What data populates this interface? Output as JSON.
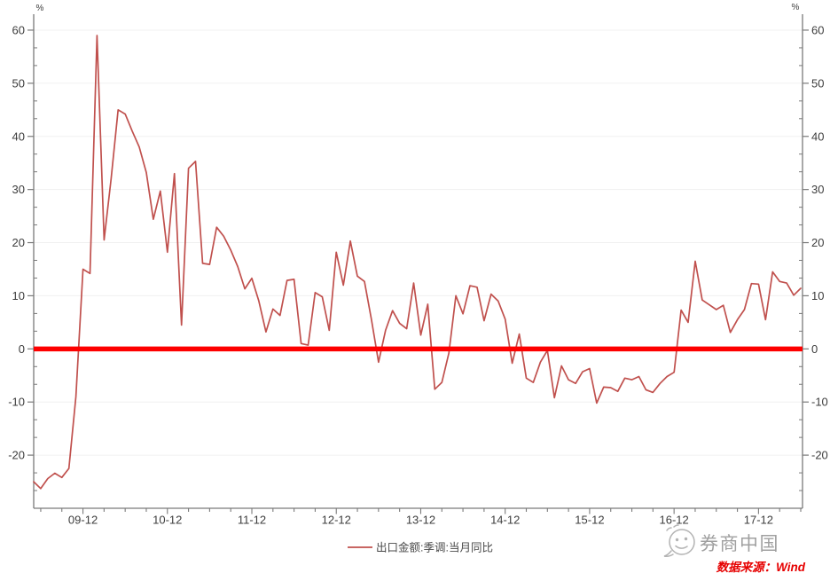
{
  "chart_data": {
    "type": "line",
    "title": "",
    "frequency": "monthly",
    "x_start_month": "2009-05",
    "x_end_month": "2018-06",
    "series": [
      {
        "name": "出口金额:季调:当月同比",
        "color": "#c0504d",
        "values": [
          -25.0,
          -26.3,
          -24.4,
          -23.4,
          -24.2,
          -22.5,
          -9.0,
          15.0,
          14.2,
          59.0,
          20.5,
          32.0,
          45.0,
          44.2,
          41.0,
          38.0,
          33.2,
          24.4,
          29.7,
          18.2,
          33.0,
          4.5,
          34.0,
          35.3,
          16.1,
          15.9,
          22.9,
          21.2,
          18.6,
          15.5,
          11.3,
          13.3,
          9.0,
          3.2,
          7.5,
          6.3,
          12.9,
          13.1,
          1.0,
          0.7,
          10.6,
          9.8,
          3.5,
          18.2,
          12.0,
          20.3,
          13.7,
          12.7,
          5.5,
          -2.5,
          3.5,
          7.2,
          4.8,
          3.8,
          12.4,
          2.6,
          8.4,
          -7.6,
          -6.3,
          -0.8,
          10.0,
          6.6,
          11.9,
          11.6,
          5.3,
          10.3,
          9.0,
          5.6,
          -2.7,
          2.8,
          -5.5,
          -6.3,
          -2.5,
          -0.3,
          -9.2,
          -3.2,
          -5.8,
          -6.5,
          -4.3,
          -3.7,
          -10.2,
          -7.2,
          -7.3,
          -8.0,
          -5.5,
          -5.8,
          -5.2,
          -7.7,
          -8.2,
          -6.5,
          -5.2,
          -4.4,
          7.3,
          5.0,
          16.5,
          9.2,
          8.3,
          7.4,
          8.2,
          3.1,
          5.5,
          7.4,
          12.3,
          12.2,
          5.5,
          14.5,
          12.7,
          12.4,
          10.1,
          11.4
        ]
      }
    ],
    "y_axis": {
      "unit": "%",
      "ticks": [
        -20,
        -10,
        0,
        10,
        20,
        30,
        40,
        50,
        60
      ],
      "minor_ticks_per_interval": 2,
      "min": -30,
      "max": 63,
      "mirrored_right_axis": true
    },
    "x_axis": {
      "tick_labels": [
        "09-12",
        "10-12",
        "11-12",
        "12-12",
        "13-12",
        "14-12",
        "15-12",
        "16-12",
        "17-12"
      ],
      "minor_tick_every_months": 3
    },
    "zero_line": {
      "value": 0,
      "color": "#fe0000"
    },
    "grid": "horizontal-light",
    "legend_position": "bottom-center"
  },
  "units": {
    "left": "%",
    "right": "%"
  },
  "legend": {
    "series_label": "出口金额:季调:当月同比"
  },
  "watermark": {
    "brand_text": "券商中国"
  },
  "source_note": {
    "text": "数据来源：Wind",
    "color": "#e60000"
  }
}
